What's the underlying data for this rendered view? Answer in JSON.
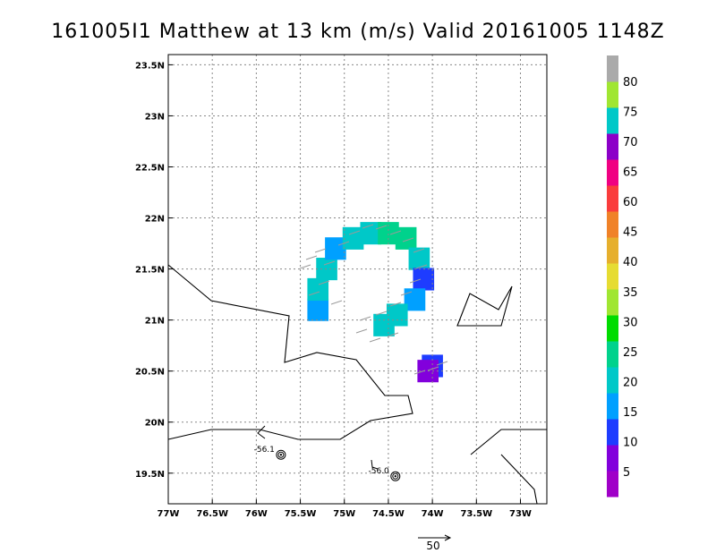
{
  "chart_data": {
    "type": "heatmap",
    "title": "161005I1 Matthew at 13 km (m/s) Valid 20161005 1148Z",
    "xlim": [
      -77.0,
      -72.7
    ],
    "ylim": [
      19.2,
      23.6
    ],
    "x_ticks": [
      {
        "value": -77.0,
        "label": "77W"
      },
      {
        "value": -76.5,
        "label": "76.5W"
      },
      {
        "value": -76.0,
        "label": "76W"
      },
      {
        "value": -75.5,
        "label": "75.5W"
      },
      {
        "value": -75.0,
        "label": "75W"
      },
      {
        "value": -74.5,
        "label": "74.5W"
      },
      {
        "value": -74.0,
        "label": "74W"
      },
      {
        "value": -73.5,
        "label": "73.5W"
      },
      {
        "value": -73.0,
        "label": "73W"
      }
    ],
    "y_ticks": [
      {
        "value": 19.5,
        "label": "19.5N"
      },
      {
        "value": 20.0,
        "label": "20N"
      },
      {
        "value": 20.5,
        "label": "20.5N"
      },
      {
        "value": 21.0,
        "label": "21N"
      },
      {
        "value": 21.5,
        "label": "21.5N"
      },
      {
        "value": 22.0,
        "label": "22N"
      },
      {
        "value": 22.5,
        "label": "22.5N"
      },
      {
        "value": 23.0,
        "label": "23N"
      },
      {
        "value": 23.5,
        "label": "23.5N"
      }
    ],
    "grid": true,
    "colorbar": {
      "labels": [
        "5",
        "10",
        "15",
        "20",
        "25",
        "30",
        "35",
        "40",
        "45",
        "60",
        "65",
        "70",
        "75",
        "80"
      ],
      "colors": [
        "#a000c8",
        "#8200dc",
        "#1e3cff",
        "#00a0ff",
        "#00c8c8",
        "#00d28c",
        "#00dc00",
        "#a0e632",
        "#e6dc32",
        "#e6af2d",
        "#f08228",
        "#fa3c3c",
        "#f00082",
        "#8c00c8",
        "#00c8c8",
        "#a0e632",
        "#aaaaaa"
      ]
    },
    "storm_centers": [
      {
        "lon": -75.72,
        "lat": 19.68,
        "pressure_label": "-56.1"
      },
      {
        "lon": -74.42,
        "lat": 19.47,
        "pressure_label": "-56.0"
      }
    ],
    "reference_vector": {
      "label": "50"
    },
    "wind_cells": [
      {
        "lon": -75.3,
        "lat": 21.1,
        "value": 18
      },
      {
        "lon": -75.3,
        "lat": 21.3,
        "value": 22
      },
      {
        "lon": -75.2,
        "lat": 21.5,
        "value": 24
      },
      {
        "lon": -75.1,
        "lat": 21.7,
        "value": 18
      },
      {
        "lon": -74.9,
        "lat": 21.8,
        "value": 22
      },
      {
        "lon": -74.7,
        "lat": 21.85,
        "value": 24
      },
      {
        "lon": -74.5,
        "lat": 21.85,
        "value": 26
      },
      {
        "lon": -74.3,
        "lat": 21.8,
        "value": 25
      },
      {
        "lon": -74.15,
        "lat": 21.6,
        "value": 22
      },
      {
        "lon": -74.1,
        "lat": 21.4,
        "value": 14
      },
      {
        "lon": -74.2,
        "lat": 21.2,
        "value": 18
      },
      {
        "lon": -74.4,
        "lat": 21.05,
        "value": 24
      },
      {
        "lon": -74.55,
        "lat": 20.95,
        "value": 20
      },
      {
        "lon": -74.0,
        "lat": 20.55,
        "value": 12
      },
      {
        "lon": -74.05,
        "lat": 20.5,
        "value": 6
      }
    ]
  }
}
